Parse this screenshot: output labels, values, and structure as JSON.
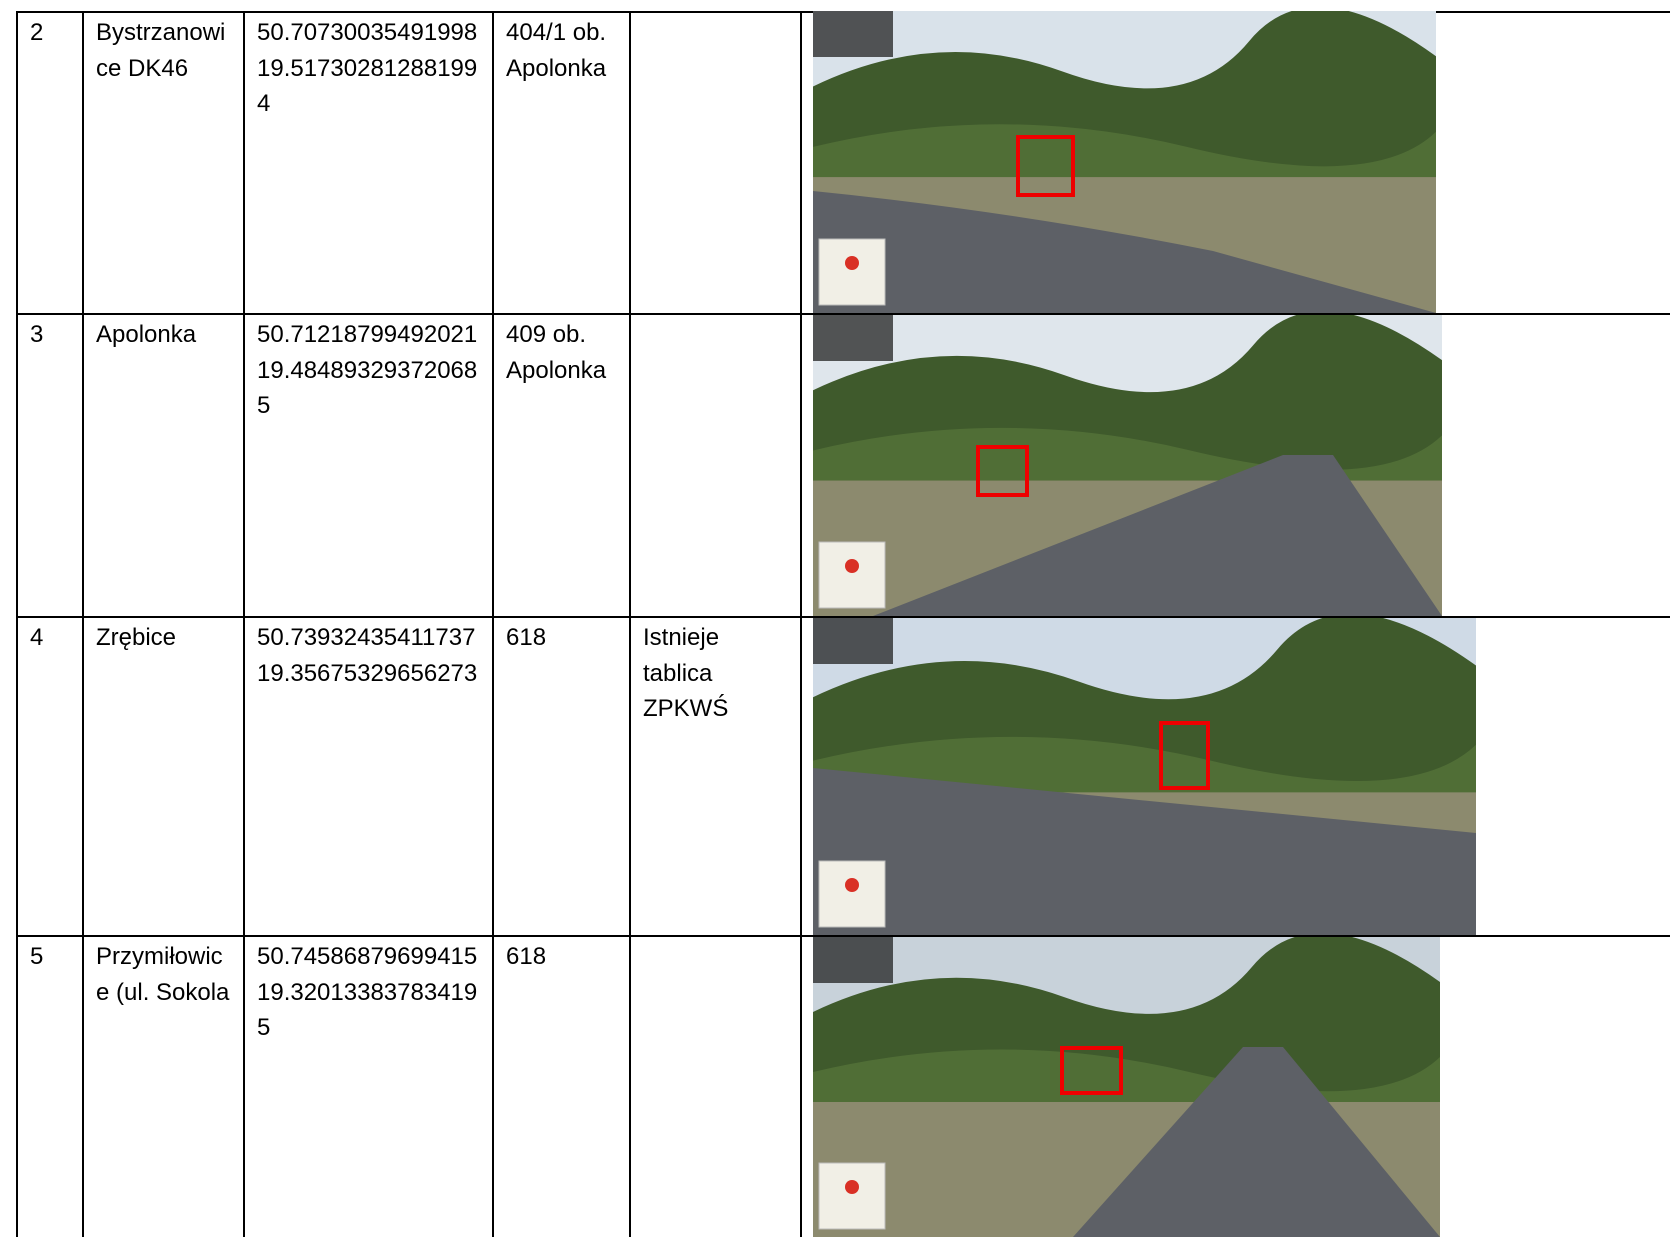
{
  "table": {
    "rows": [
      {
        "no": 2,
        "place": "Bystrzanowice DK46",
        "lat": "50.70730035491998",
        "lon": "19.517302812881994",
        "plot": "404/1 ob. Apolonka"
      },
      {
        "no": 3,
        "place": "Apolonka",
        "lat": "50.71218799492021",
        "lon": "19.484893293720685",
        "plot": "409 ob. Apolonka"
      },
      {
        "no": 4,
        "place": "Zrębice",
        "lat": "50.73932435411737",
        "lon": "19.35675329656273",
        "plot": "618",
        "note": "Istnieje tablica ZPKWŚ"
      },
      {
        "no": 5,
        "place": "Przymiłowice (ul. Sokola",
        "lat": "50.74586879699415",
        "lon": "19.320133837834195",
        "plot": "618"
      }
    ]
  }
}
